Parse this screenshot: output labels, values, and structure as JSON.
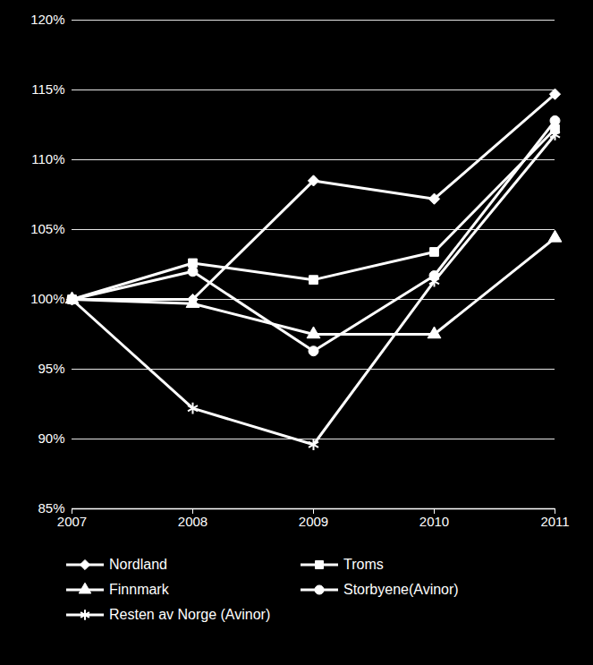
{
  "chart_data": {
    "type": "line",
    "categories": [
      "2007",
      "2008",
      "2009",
      "2010",
      "2011"
    ],
    "series": [
      {
        "name": "Nordland",
        "color": "#ffffff",
        "marker": "diamond",
        "values": [
          100,
          100,
          108.5,
          107.2,
          114.7
        ]
      },
      {
        "name": "Troms",
        "color": "#ffffff",
        "marker": "square",
        "values": [
          100,
          102.6,
          101.4,
          103.4,
          112.2
        ]
      },
      {
        "name": "Finnmark",
        "color": "#ffffff",
        "marker": "triangle",
        "values": [
          100,
          99.7,
          97.5,
          97.5,
          104.4
        ]
      },
      {
        "name": "Storbyene(Avinor)",
        "color": "#ffffff",
        "marker": "circle",
        "values": [
          100,
          102.0,
          96.3,
          101.7,
          112.8
        ]
      },
      {
        "name": "Resten av Norge (Avinor)",
        "color": "#ffffff",
        "marker": "asterisk",
        "values": [
          100,
          92.2,
          89.6,
          101.3,
          111.8
        ]
      }
    ],
    "ylim": [
      85,
      120
    ],
    "yticks": [
      {
        "value": 85,
        "label": "85%"
      },
      {
        "value": 90,
        "label": "90%"
      },
      {
        "value": 95,
        "label": "95%"
      },
      {
        "value": 100,
        "label": "100%"
      },
      {
        "value": 105,
        "label": "105%"
      },
      {
        "value": 110,
        "label": "110%"
      },
      {
        "value": 115,
        "label": "115%"
      },
      {
        "value": 120,
        "label": "120%"
      }
    ],
    "grid": true,
    "legend": "bottom"
  }
}
